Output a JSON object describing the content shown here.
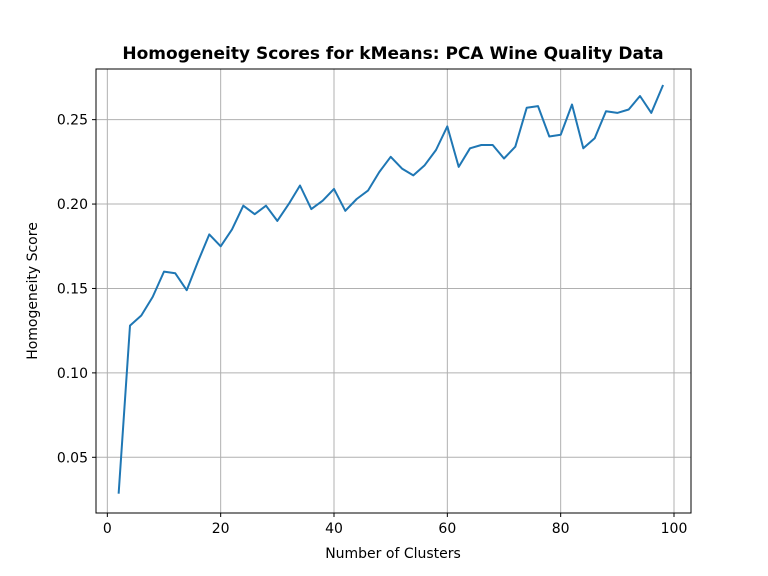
{
  "chart_data": {
    "type": "line",
    "title": "Homogeneity Scores for kMeans: PCA Wine Quality Data",
    "xlabel": "Number of Clusters",
    "ylabel": "Homogeneity Score",
    "xlim": [
      -2,
      103
    ],
    "ylim": [
      0.017,
      0.28
    ],
    "xticks": [
      0,
      20,
      40,
      60,
      80,
      100
    ],
    "yticks": [
      0.05,
      0.1,
      0.15,
      0.2,
      0.25
    ],
    "xtick_labels": [
      "0",
      "20",
      "40",
      "60",
      "80",
      "100"
    ],
    "ytick_labels": [
      "0.05",
      "0.10",
      "0.15",
      "0.20",
      "0.25"
    ],
    "grid": true,
    "line_color": "#1f77b4",
    "series": [
      {
        "x": [
          2,
          4,
          6,
          8,
          10,
          12,
          14,
          16,
          18,
          20,
          22,
          24,
          26,
          28,
          30,
          32,
          34,
          36,
          38,
          40,
          42,
          44,
          46,
          48,
          50,
          52,
          54,
          56,
          58,
          60,
          62,
          64,
          66,
          68,
          70,
          72,
          74,
          76,
          78,
          80,
          82,
          84,
          86,
          88,
          90,
          92,
          94,
          96,
          98
        ],
        "values": [
          0.029,
          0.128,
          0.134,
          0.145,
          0.16,
          0.159,
          0.149,
          0.166,
          0.182,
          0.175,
          0.185,
          0.199,
          0.194,
          0.199,
          0.19,
          0.2,
          0.211,
          0.197,
          0.202,
          0.209,
          0.196,
          0.203,
          0.208,
          0.219,
          0.228,
          0.221,
          0.217,
          0.223,
          0.232,
          0.246,
          0.222,
          0.233,
          0.235,
          0.235,
          0.227,
          0.234,
          0.257,
          0.258,
          0.24,
          0.241,
          0.259,
          0.233,
          0.239,
          0.255,
          0.254,
          0.256,
          0.264,
          0.254,
          0.27
        ]
      }
    ]
  }
}
